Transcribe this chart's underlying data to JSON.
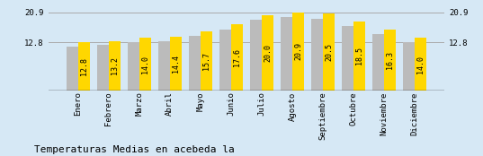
{
  "categories": [
    "Enero",
    "Febrero",
    "Marzo",
    "Abril",
    "Mayo",
    "Junio",
    "Julio",
    "Agosto",
    "Septiembre",
    "Octubre",
    "Noviembre",
    "Diciembre"
  ],
  "values": [
    12.8,
    13.2,
    14.0,
    14.4,
    15.7,
    17.6,
    20.0,
    20.9,
    20.5,
    18.5,
    16.3,
    14.0
  ],
  "gray_values": [
    11.8,
    12.1,
    12.9,
    13.2,
    14.5,
    16.3,
    18.8,
    19.6,
    19.2,
    17.2,
    15.1,
    12.9
  ],
  "bar_color_yellow": "#FFD700",
  "bar_color_gray": "#BBBBBB",
  "background_color": "#D6E8F5",
  "title": "Temperaturas Medias en acebeda la",
  "ylim_max": 22.5,
  "yticks": [
    12.8,
    20.9
  ],
  "ytick_labels": [
    "12.8",
    "20.9"
  ],
  "label_fontsize": 6.0,
  "title_fontsize": 8,
  "xlabel_fontsize": 6.5,
  "hline_color": "#AAAAAA",
  "hline_top_color": "#CCCCCC"
}
